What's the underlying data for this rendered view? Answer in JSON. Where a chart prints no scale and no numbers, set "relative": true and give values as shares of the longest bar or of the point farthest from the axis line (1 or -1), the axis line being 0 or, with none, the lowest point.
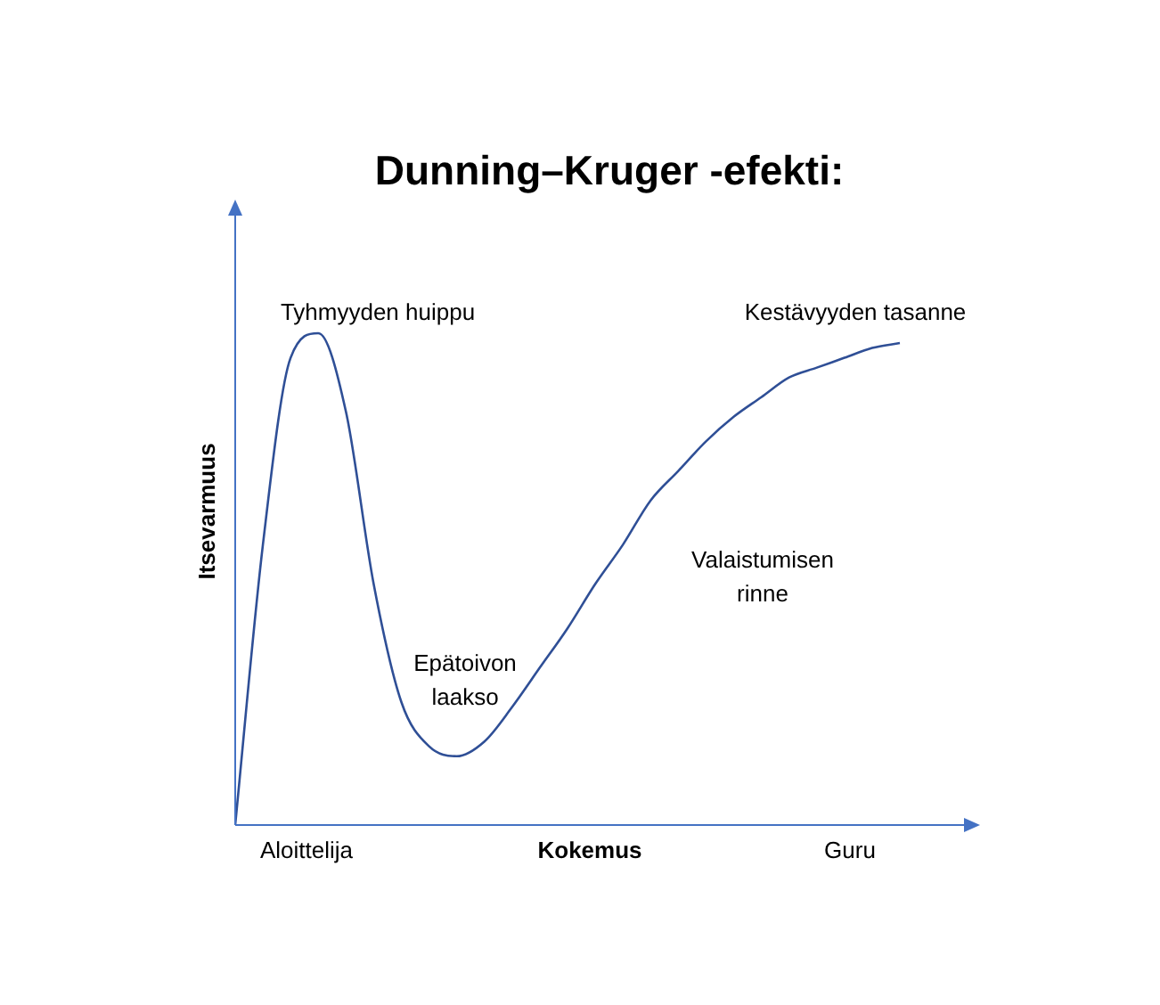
{
  "chart_data": {
    "type": "line",
    "title": "Dunning–Kruger -efekti:",
    "xlabel": "Kokemus",
    "ylabel": "Itsevarmuus",
    "relative": true,
    "marker": "none",
    "categories": [
      null,
      null,
      null,
      null,
      null,
      null,
      null,
      null,
      null,
      null,
      null,
      null,
      null,
      null,
      null,
      null,
      null,
      null,
      null,
      null,
      null,
      null,
      null,
      null,
      null
    ],
    "series": [
      {
        "color": "#2f4f96",
        "values": [
          0,
          0.57,
          0.95,
          1,
          0.84,
          0.49,
          0.25,
          0.16,
          0.14,
          0.17,
          0.24,
          0.32,
          0.4,
          0.49,
          0.57,
          0.66,
          0.72,
          0.78,
          0.83,
          0.87,
          0.91,
          0.93,
          0.95,
          0.97,
          0.98
        ]
      }
    ],
    "annotations": [
      "Tyhmyyden huippu",
      "Kestävyyden tasanne",
      "Valaistumisen\nrinne",
      "Epätoivon\nlaakso",
      "Aloittelija",
      "Guru"
    ]
  }
}
